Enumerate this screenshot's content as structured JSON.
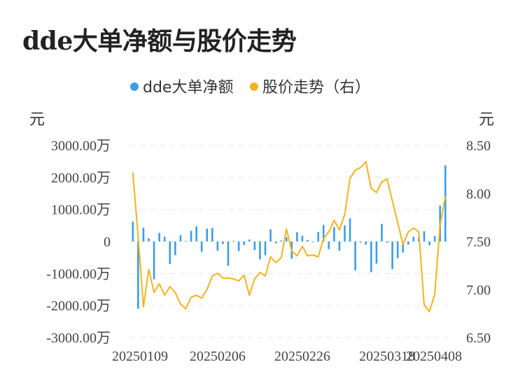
{
  "title": "dde大单净额与股价走势",
  "colors": {
    "bar": "#3a9ee8",
    "line": "#f2b41c",
    "grid": "#e6e6e6",
    "text": "#444444"
  },
  "chart_data": {
    "type": "bar+line",
    "legend": [
      {
        "name": "dde大单净额",
        "color": "#3a9ee8"
      },
      {
        "name": "股价走势（右）",
        "color": "#f2b41c"
      }
    ],
    "legend_position": "top-center",
    "y_left_unit": "元",
    "y_right_unit": "元",
    "y_left_ticks": [
      "3000.00万",
      "2000.00万",
      "1000.00万",
      "0",
      "-1000.00万",
      "-2000.00万",
      "-3000.00万"
    ],
    "y_right_ticks": [
      "8.50",
      "8.00",
      "7.50",
      "7.00",
      "6.50"
    ],
    "y_left_range": [
      -3000,
      3000
    ],
    "y_right_range": [
      6.5,
      8.5
    ],
    "x_tick_labels": [
      "20250109",
      "20250206",
      "20250226",
      "20250318",
      "20250408"
    ],
    "x_tick_indices": [
      0,
      16,
      32,
      48,
      64
    ],
    "grid": true,
    "series": [
      {
        "name": "dde大单净额",
        "axis": "left",
        "unit": "万元",
        "values": [
          620,
          -2100,
          430,
          100,
          -1180,
          270,
          150,
          -700,
          -430,
          200,
          20,
          330,
          470,
          -320,
          400,
          420,
          -290,
          -80,
          -760,
          20,
          -300,
          -110,
          60,
          -270,
          -560,
          -430,
          380,
          -60,
          30,
          130,
          -540,
          290,
          180,
          50,
          -20,
          290,
          520,
          -240,
          450,
          -290,
          500,
          720,
          -900,
          -30,
          -100,
          -960,
          -690,
          550,
          -40,
          -860,
          -520,
          -350,
          -100,
          150,
          120,
          320,
          -120,
          170,
          1120,
          2380
        ]
      },
      {
        "name": "股价走势（右）",
        "axis": "right",
        "unit": "元",
        "values": [
          8.22,
          7.55,
          6.82,
          7.21,
          6.97,
          7.06,
          6.94,
          7.03,
          6.97,
          6.85,
          6.8,
          6.92,
          6.94,
          6.91,
          7.0,
          7.14,
          7.17,
          7.12,
          7.12,
          7.11,
          7.09,
          7.15,
          6.94,
          7.11,
          7.18,
          7.14,
          7.34,
          7.28,
          7.33,
          7.63,
          7.4,
          7.35,
          7.45,
          7.35,
          7.36,
          7.34,
          7.53,
          7.6,
          7.72,
          7.62,
          7.78,
          8.16,
          8.24,
          8.27,
          8.33,
          8.05,
          8.01,
          8.12,
          8.15,
          7.92,
          7.7,
          7.47,
          7.6,
          7.64,
          7.6,
          6.84,
          6.77,
          6.95,
          7.67,
          7.97
        ]
      }
    ]
  }
}
